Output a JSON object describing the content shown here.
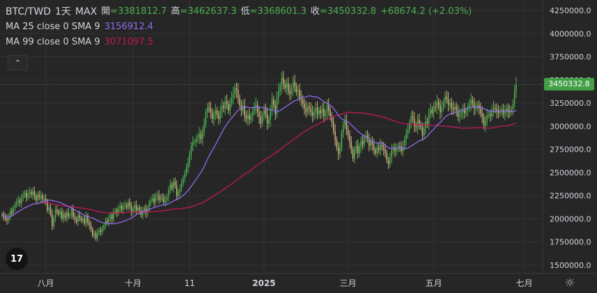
{
  "header": {
    "symbol": "BTC/TWD",
    "interval": "1天",
    "range": "MAX",
    "open_label": "開",
    "open_value": "=3381812.7",
    "high_label": "高",
    "high_value": "=3462637.3",
    "low_label": "低",
    "low_value": "=3368601.3",
    "close_label": "收",
    "close_value": "=3450332.8",
    "change": "+68674.2 (+2.03%)"
  },
  "indicators": [
    {
      "label": "MA 25 close 0 SMA 9",
      "value": "3156912.4",
      "color": "#8e6cf0"
    },
    {
      "label": "MA 99 close 0 SMA 9",
      "value": "3071097.5",
      "color": "#c2185b"
    }
  ],
  "controls": {
    "collapse_icon": "chevron-up-icon",
    "logo_text": "17",
    "settings_icon": "gear-icon"
  },
  "colors": {
    "up": "#4caf50",
    "down": "#c9b27a",
    "background": "#262626",
    "last_price_tag": "#43a047"
  },
  "chart_data": {
    "type": "candlestick",
    "symbol": "BTC/TWD",
    "ylim": [
      1400000,
      4300000
    ],
    "y_ticks": [
      "4250000.0",
      "4000000.0",
      "3750000.0",
      "3500000.0",
      "3250000.0",
      "3000000.0",
      "2750000.0",
      "2500000.0",
      "2250000.0",
      "2000000.0",
      "1750000.0",
      "1500000.0"
    ],
    "y_tick_values": [
      4250000,
      4000000,
      3750000,
      3500000,
      3250000,
      3000000,
      2750000,
      2500000,
      2250000,
      2000000,
      1750000,
      1500000
    ],
    "x_ticks": [
      "八月",
      "十月",
      "11",
      "2025",
      "三月",
      "五月",
      "七月"
    ],
    "x_tick_index": [
      27,
      81,
      116,
      162,
      214,
      267,
      323
    ],
    "last_price": 3450332.8,
    "last_price_label": "3450332.8",
    "close_series": [
      2050000,
      2020000,
      2000000,
      1980000,
      2030000,
      2080000,
      2060000,
      2120000,
      2150000,
      2180000,
      2200000,
      2170000,
      2230000,
      2250000,
      2280000,
      2230000,
      2270000,
      2290000,
      2260000,
      2300000,
      2250000,
      2200000,
      2260000,
      2230000,
      2250000,
      2210000,
      2220000,
      2190000,
      2090000,
      2120000,
      2050000,
      1920000,
      2010000,
      2100000,
      2080000,
      2050000,
      2080000,
      2000000,
      2050000,
      2010000,
      2070000,
      2030000,
      2040000,
      2110000,
      2020000,
      2000000,
      1970000,
      2040000,
      2010000,
      1980000,
      2000000,
      1950000,
      2030000,
      1960000,
      1930000,
      1890000,
      1820000,
      1840000,
      1790000,
      1850000,
      1880000,
      1860000,
      1890000,
      1930000,
      1980000,
      1960000,
      2000000,
      2040000,
      2000000,
      2070000,
      2090000,
      2060000,
      2110000,
      2140000,
      2100000,
      2140000,
      2150000,
      2120000,
      2180000,
      2130000,
      2070000,
      2110000,
      2150000,
      2090000,
      2120000,
      2090000,
      2040000,
      2080000,
      2120000,
      2060000,
      2100000,
      2180000,
      2200000,
      2220000,
      2180000,
      2250000,
      2260000,
      2200000,
      2240000,
      2230000,
      2180000,
      2200000,
      2240000,
      2310000,
      2370000,
      2330000,
      2400000,
      2360000,
      2250000,
      2290000,
      2330000,
      2380000,
      2440000,
      2490000,
      2550000,
      2600000,
      2700000,
      2780000,
      2830000,
      2830000,
      2860000,
      2870000,
      2920000,
      2860000,
      2940000,
      3020000,
      3150000,
      3200000,
      3190000,
      3150000,
      3080000,
      3120000,
      3170000,
      3120000,
      3080000,
      3160000,
      3220000,
      3200000,
      3270000,
      3240000,
      3170000,
      3250000,
      3310000,
      3350000,
      3410000,
      3390000,
      3300000,
      3230000,
      3170000,
      3220000,
      3120000,
      3080000,
      3120000,
      3070000,
      3110000,
      3160000,
      3200000,
      3230000,
      3150000,
      3100000,
      3030000,
      3120000,
      3180000,
      3130000,
      3030000,
      3070000,
      3170000,
      3290000,
      3230000,
      3130000,
      3310000,
      3380000,
      3430000,
      3520000,
      3460000,
      3410000,
      3460000,
      3380000,
      3350000,
      3410000,
      3480000,
      3430000,
      3370000,
      3390000,
      3310000,
      3290000,
      3240000,
      3200000,
      3150000,
      3210000,
      3190000,
      3150000,
      3110000,
      3160000,
      3200000,
      3130000,
      3170000,
      3140000,
      3190000,
      3110000,
      3140000,
      3230000,
      3170000,
      3100000,
      3050000,
      2950000,
      2850000,
      2780000,
      2700000,
      2760000,
      2930000,
      3010000,
      3060000,
      2970000,
      2900000,
      2830000,
      2750000,
      2650000,
      2740000,
      2790000,
      2710000,
      2780000,
      2840000,
      2800000,
      2880000,
      2900000,
      2860000,
      2790000,
      2840000,
      2800000,
      2740000,
      2710000,
      2770000,
      2740000,
      2800000,
      2780000,
      2750000,
      2710000,
      2630000,
      2590000,
      2660000,
      2740000,
      2770000,
      2730000,
      2750000,
      2790000,
      2780000,
      2730000,
      2780000,
      2860000,
      2920000,
      2960000,
      3040000,
      3110000,
      3080000,
      3000000,
      2990000,
      3070000,
      3020000,
      2990000,
      2900000,
      2980000,
      3050000,
      3030000,
      3140000,
      3180000,
      3140000,
      3210000,
      3200000,
      3260000,
      3230000,
      3150000,
      3200000,
      3260000,
      3320000,
      3290000,
      3230000,
      3250000,
      3200000,
      3180000,
      3210000,
      3170000,
      3100000,
      3120000,
      3150000,
      3180000,
      3140000,
      3170000,
      3200000,
      3230000,
      3280000,
      3250000,
      3190000,
      3200000,
      3230000,
      3190000,
      3140000,
      3100000,
      3010000,
      3060000,
      3120000,
      3130000,
      3110000,
      3170000,
      3200000,
      3190000,
      3160000,
      3140000,
      3170000,
      3180000,
      3130000,
      3150000,
      3190000,
      3160000,
      3150000,
      3180000,
      3240000,
      3380000,
      3450000
    ],
    "ma25_last": 3156912.4,
    "ma99_last": 3071097.5
  }
}
